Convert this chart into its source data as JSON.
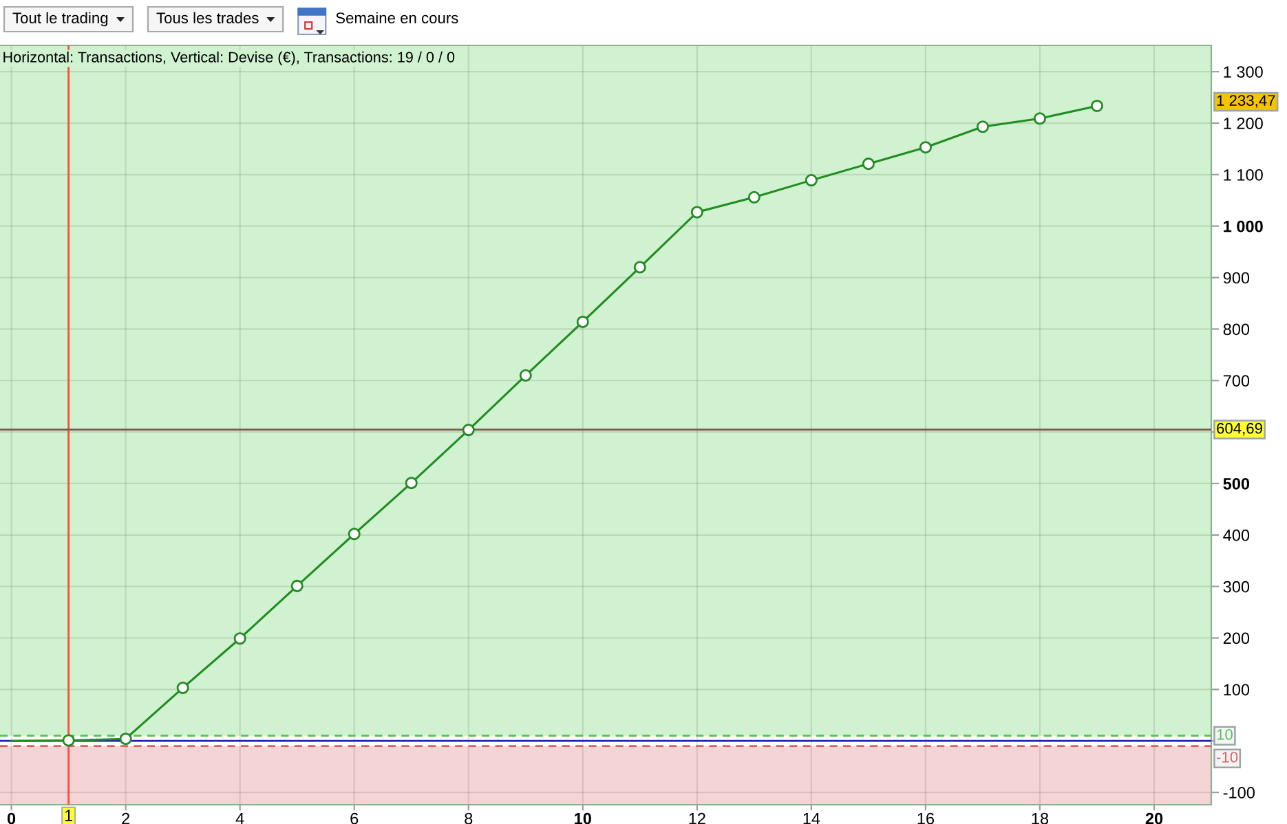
{
  "chart_data": {
    "type": "line",
    "title": "Horizontal: Transactions, Vertical: Devise (€), Transactions: 19 / 0 / 0",
    "annotations": [
      "Tout le trading",
      "Tous les trades",
      "Semaine en cours",
      "1 233,47"
    ],
    "series": [
      {
        "color": "#218c21",
        "x": [
          0,
          1
        ],
        "values": [
          0,
          1
        ]
      },
      {
        "color": "#218c21",
        "marker": "circle",
        "x": [
          1,
          2,
          3,
          4,
          5,
          6,
          7,
          8,
          9,
          10,
          11,
          12,
          13,
          14,
          15,
          16,
          17,
          18,
          19
        ],
        "values": [
          1,
          4,
          103,
          199,
          301,
          402,
          501,
          604,
          710,
          814,
          920,
          1027,
          1056,
          1089,
          1121,
          1153,
          1193,
          1209,
          1233.47
        ]
      }
    ],
    "xlim": [
      -0.2,
      21
    ],
    "ylim": [
      -124,
      1351
    ],
    "xticks": [
      0,
      2,
      4,
      6,
      8,
      10,
      12,
      14,
      16,
      18,
      20
    ],
    "yticks": [
      -100,
      {
        "value": 0,
        "label": null
      },
      100,
      200,
      300,
      400,
      500,
      {
        "value": 600,
        "label": null
      },
      700,
      800,
      900,
      {
        "value": 1000,
        "label": "1 000"
      },
      {
        "value": 1100,
        "label": "1 100"
      },
      {
        "value": 1200,
        "label": "1 200"
      },
      {
        "value": 1300,
        "label": "1 300"
      }
    ],
    "grid": true,
    "bands": [
      {
        "axis": "y",
        "from": 10,
        "to": 1351,
        "color": "#d0f2d0"
      },
      {
        "axis": "y",
        "from": -124,
        "to": -10,
        "color": "#f4d4d4"
      }
    ],
    "ref_lines": [
      {
        "axis": "x",
        "value": 1,
        "label": "1",
        "color": "#ff4a3d"
      },
      {
        "axis": "y",
        "value": 604.69,
        "label": "604,69",
        "color": "#7a5a50"
      },
      {
        "axis": "y",
        "value": 10,
        "label": "10",
        "color": "#55c055",
        "line_style": "dashed"
      },
      {
        "axis": "y",
        "value": -10,
        "label": "-10",
        "color": "#e06060",
        "line_style": "dashed"
      },
      {
        "axis": "y",
        "value": 0,
        "color": "#2020c0"
      }
    ]
  }
}
